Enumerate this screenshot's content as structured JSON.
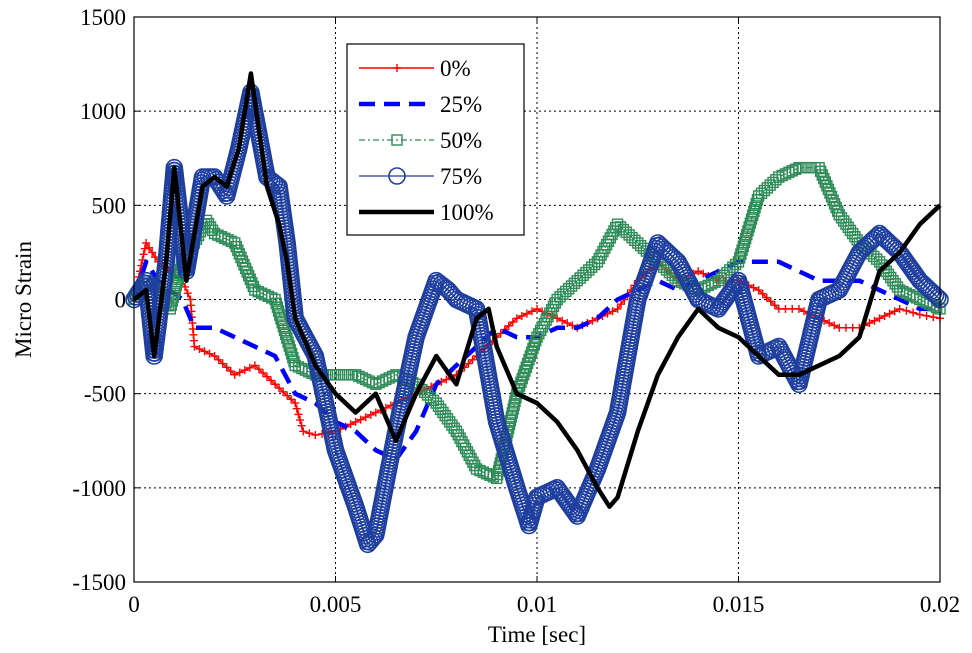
{
  "chart_data": {
    "type": "line",
    "xlabel": "Time [sec]",
    "ylabel": "Micro Strain",
    "xlim": [
      0,
      0.02
    ],
    "ylim": [
      -1500,
      1500
    ],
    "xticks": [
      0,
      0.005,
      0.01,
      0.015,
      0.02
    ],
    "xtick_labels": [
      "0",
      "0.005",
      "0.01",
      "0.015",
      "0.02"
    ],
    "yticks": [
      -1500,
      -1000,
      -500,
      0,
      500,
      1000,
      1500
    ],
    "ytick_labels": [
      "-1500",
      "-1000",
      "-500",
      "0",
      "500",
      "1000",
      "1500"
    ],
    "grid": true,
    "legend_position": "top-center",
    "series": [
      {
        "name": "0%",
        "color": "#ff0000",
        "marker": "plus",
        "points": [
          [
            0,
            0
          ],
          [
            0.0003,
            300
          ],
          [
            0.0006,
            200
          ],
          [
            0.0009,
            150
          ],
          [
            0.0012,
            100
          ],
          [
            0.0014,
            0
          ],
          [
            0.0015,
            -250
          ],
          [
            0.002,
            -300
          ],
          [
            0.0025,
            -400
          ],
          [
            0.003,
            -350
          ],
          [
            0.0035,
            -450
          ],
          [
            0.004,
            -550
          ],
          [
            0.0042,
            -700
          ],
          [
            0.0045,
            -720
          ],
          [
            0.005,
            -700
          ],
          [
            0.0055,
            -650
          ],
          [
            0.006,
            -600
          ],
          [
            0.0065,
            -550
          ],
          [
            0.007,
            -500
          ],
          [
            0.0075,
            -450
          ],
          [
            0.008,
            -400
          ],
          [
            0.0085,
            -300
          ],
          [
            0.009,
            -200
          ],
          [
            0.0095,
            -100
          ],
          [
            0.01,
            -50
          ],
          [
            0.0105,
            -100
          ],
          [
            0.011,
            -150
          ],
          [
            0.0115,
            -100
          ],
          [
            0.012,
            -50
          ],
          [
            0.0125,
            100
          ],
          [
            0.013,
            200
          ],
          [
            0.0135,
            100
          ],
          [
            0.014,
            150
          ],
          [
            0.0145,
            100
          ],
          [
            0.015,
            100
          ],
          [
            0.0155,
            50
          ],
          [
            0.016,
            -50
          ],
          [
            0.0165,
            -50
          ],
          [
            0.017,
            -100
          ],
          [
            0.0175,
            -150
          ],
          [
            0.018,
            -150
          ],
          [
            0.0185,
            -100
          ],
          [
            0.019,
            -50
          ],
          [
            0.0195,
            -80
          ],
          [
            0.02,
            -100
          ]
        ]
      },
      {
        "name": "25%",
        "color": "#0000ff",
        "marker": "none",
        "points": [
          [
            0,
            0
          ],
          [
            0.0003,
            200
          ],
          [
            0.0006,
            100
          ],
          [
            0.0009,
            50
          ],
          [
            0.0012,
            0
          ],
          [
            0.0015,
            -150
          ],
          [
            0.002,
            -150
          ],
          [
            0.0025,
            -200
          ],
          [
            0.003,
            -250
          ],
          [
            0.0035,
            -300
          ],
          [
            0.004,
            -500
          ],
          [
            0.0045,
            -550
          ],
          [
            0.005,
            -650
          ],
          [
            0.0055,
            -700
          ],
          [
            0.006,
            -800
          ],
          [
            0.0065,
            -850
          ],
          [
            0.007,
            -700
          ],
          [
            0.0075,
            -450
          ],
          [
            0.008,
            -350
          ],
          [
            0.0085,
            -250
          ],
          [
            0.009,
            -150
          ],
          [
            0.0095,
            -200
          ],
          [
            0.01,
            -200
          ],
          [
            0.0105,
            -150
          ],
          [
            0.011,
            -150
          ],
          [
            0.0115,
            -100
          ],
          [
            0.012,
            0
          ],
          [
            0.0125,
            50
          ],
          [
            0.013,
            100
          ],
          [
            0.0135,
            50
          ],
          [
            0.014,
            100
          ],
          [
            0.0145,
            150
          ],
          [
            0.015,
            200
          ],
          [
            0.0155,
            200
          ],
          [
            0.016,
            200
          ],
          [
            0.0165,
            150
          ],
          [
            0.017,
            100
          ],
          [
            0.0175,
            100
          ],
          [
            0.018,
            100
          ],
          [
            0.0185,
            50
          ],
          [
            0.019,
            0
          ],
          [
            0.0195,
            -50
          ],
          [
            0.02,
            -50
          ]
        ]
      },
      {
        "name": "50%",
        "color": "#2e8b57",
        "marker": "square",
        "points": [
          [
            0,
            0
          ],
          [
            0.0003,
            100
          ],
          [
            0.0006,
            50
          ],
          [
            0.0009,
            -50
          ],
          [
            0.0012,
            200
          ],
          [
            0.0015,
            300
          ],
          [
            0.0018,
            420
          ],
          [
            0.002,
            350
          ],
          [
            0.0025,
            300
          ],
          [
            0.003,
            50
          ],
          [
            0.0035,
            0
          ],
          [
            0.004,
            -350
          ],
          [
            0.0045,
            -400
          ],
          [
            0.005,
            -400
          ],
          [
            0.0055,
            -400
          ],
          [
            0.006,
            -450
          ],
          [
            0.0065,
            -400
          ],
          [
            0.007,
            -450
          ],
          [
            0.0075,
            -550
          ],
          [
            0.008,
            -700
          ],
          [
            0.0085,
            -900
          ],
          [
            0.009,
            -950
          ],
          [
            0.0095,
            -500
          ],
          [
            0.01,
            -200
          ],
          [
            0.0105,
            0
          ],
          [
            0.011,
            100
          ],
          [
            0.0115,
            200
          ],
          [
            0.012,
            400
          ],
          [
            0.0125,
            300
          ],
          [
            0.013,
            200
          ],
          [
            0.0135,
            100
          ],
          [
            0.014,
            50
          ],
          [
            0.0145,
            100
          ],
          [
            0.015,
            200
          ],
          [
            0.0155,
            550
          ],
          [
            0.016,
            650
          ],
          [
            0.0165,
            700
          ],
          [
            0.017,
            700
          ],
          [
            0.0175,
            450
          ],
          [
            0.018,
            300
          ],
          [
            0.0185,
            200
          ],
          [
            0.019,
            50
          ],
          [
            0.0195,
            0
          ],
          [
            0.02,
            -50
          ]
        ]
      },
      {
        "name": "75%",
        "color": "#1f3f9f",
        "marker": "circle",
        "points": [
          [
            0,
            0
          ],
          [
            0.0003,
            100
          ],
          [
            0.0005,
            -300
          ],
          [
            0.0008,
            200
          ],
          [
            0.001,
            700
          ],
          [
            0.0013,
            150
          ],
          [
            0.0017,
            650
          ],
          [
            0.002,
            650
          ],
          [
            0.0023,
            550
          ],
          [
            0.0026,
            800
          ],
          [
            0.0029,
            1100
          ],
          [
            0.0033,
            650
          ],
          [
            0.0036,
            600
          ],
          [
            0.0038,
            300
          ],
          [
            0.004,
            -100
          ],
          [
            0.0045,
            -300
          ],
          [
            0.005,
            -800
          ],
          [
            0.0055,
            -1100
          ],
          [
            0.0058,
            -1300
          ],
          [
            0.006,
            -1250
          ],
          [
            0.0065,
            -700
          ],
          [
            0.007,
            -200
          ],
          [
            0.0075,
            100
          ],
          [
            0.0078,
            50
          ],
          [
            0.008,
            0
          ],
          [
            0.0085,
            -50
          ],
          [
            0.009,
            -650
          ],
          [
            0.0095,
            -1000
          ],
          [
            0.0098,
            -1200
          ],
          [
            0.01,
            -1050
          ],
          [
            0.0105,
            -1000
          ],
          [
            0.011,
            -1150
          ],
          [
            0.0115,
            -900
          ],
          [
            0.012,
            -600
          ],
          [
            0.0125,
            0
          ],
          [
            0.013,
            300
          ],
          [
            0.0135,
            200
          ],
          [
            0.014,
            0
          ],
          [
            0.0145,
            -50
          ],
          [
            0.015,
            100
          ],
          [
            0.0155,
            -300
          ],
          [
            0.016,
            -250
          ],
          [
            0.0165,
            -450
          ],
          [
            0.017,
            0
          ],
          [
            0.0175,
            50
          ],
          [
            0.018,
            250
          ],
          [
            0.0185,
            350
          ],
          [
            0.019,
            250
          ],
          [
            0.0195,
            100
          ],
          [
            0.02,
            0
          ]
        ]
      },
      {
        "name": "100%",
        "color": "#000000",
        "marker": "none",
        "points": [
          [
            0,
            0
          ],
          [
            0.0003,
            50
          ],
          [
            0.0005,
            -300
          ],
          [
            0.0008,
            200
          ],
          [
            0.001,
            700
          ],
          [
            0.0013,
            100
          ],
          [
            0.0017,
            600
          ],
          [
            0.002,
            650
          ],
          [
            0.0023,
            600
          ],
          [
            0.0026,
            800
          ],
          [
            0.0029,
            1200
          ],
          [
            0.0033,
            600
          ],
          [
            0.0036,
            400
          ],
          [
            0.0038,
            200
          ],
          [
            0.004,
            -100
          ],
          [
            0.0045,
            -350
          ],
          [
            0.005,
            -500
          ],
          [
            0.0055,
            -600
          ],
          [
            0.006,
            -500
          ],
          [
            0.0065,
            -750
          ],
          [
            0.007,
            -500
          ],
          [
            0.0075,
            -300
          ],
          [
            0.008,
            -450
          ],
          [
            0.0085,
            -100
          ],
          [
            0.0088,
            -50
          ],
          [
            0.009,
            -250
          ],
          [
            0.0095,
            -500
          ],
          [
            0.01,
            -550
          ],
          [
            0.0105,
            -650
          ],
          [
            0.011,
            -800
          ],
          [
            0.0115,
            -1000
          ],
          [
            0.0118,
            -1100
          ],
          [
            0.012,
            -1050
          ],
          [
            0.0125,
            -700
          ],
          [
            0.013,
            -400
          ],
          [
            0.0135,
            -200
          ],
          [
            0.014,
            -50
          ],
          [
            0.0145,
            -150
          ],
          [
            0.015,
            -200
          ],
          [
            0.0155,
            -300
          ],
          [
            0.016,
            -400
          ],
          [
            0.0165,
            -400
          ],
          [
            0.017,
            -350
          ],
          [
            0.0175,
            -300
          ],
          [
            0.018,
            -200
          ],
          [
            0.0185,
            150
          ],
          [
            0.019,
            250
          ],
          [
            0.0195,
            400
          ],
          [
            0.02,
            500
          ]
        ]
      }
    ]
  }
}
